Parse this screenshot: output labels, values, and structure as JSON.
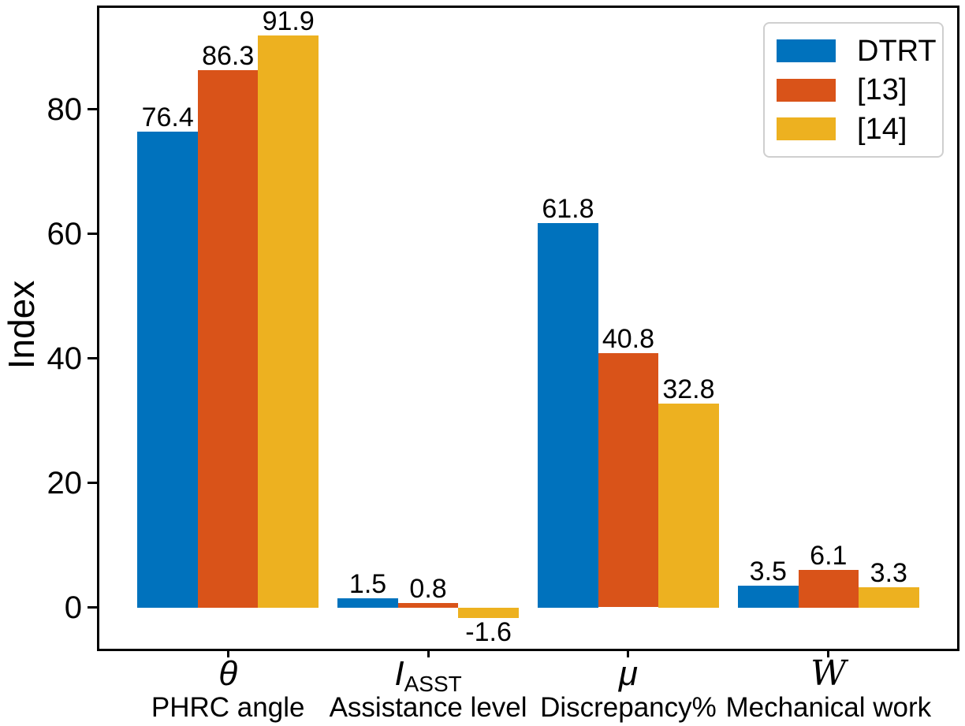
{
  "chart_data": {
    "type": "bar",
    "title": "",
    "xlabel": "",
    "ylabel": "Index",
    "background_color": "#ffffff",
    "axis_color": "#000000",
    "grid": false,
    "legend_position": "upper right",
    "y_ticks": [
      0,
      20,
      40,
      60,
      80
    ],
    "ylim": [
      -6.6,
      96.3
    ],
    "categories": [
      {
        "symbol": "θ",
        "subscript": "",
        "symbol_style": "italic",
        "label": "PHRC angle"
      },
      {
        "symbol": "I",
        "subscript": "ASST",
        "symbol_style": "italic",
        "label": "Assistance level"
      },
      {
        "symbol": "μ",
        "subscript": "",
        "symbol_style": "italic",
        "label": "Discrepancy%"
      },
      {
        "symbol": "W",
        "subscript": "",
        "symbol_style": "script",
        "label": "Mechanical work"
      }
    ],
    "series": [
      {
        "name": "DTRT",
        "color": "#0072BD",
        "values": [
          76.4,
          1.5,
          61.8,
          3.5
        ]
      },
      {
        "name": "[13]",
        "color": "#D95319",
        "values": [
          86.3,
          0.8,
          40.8,
          6.1
        ]
      },
      {
        "name": "[14]",
        "color": "#EDB120",
        "values": [
          91.9,
          -1.6,
          32.8,
          3.3
        ]
      }
    ],
    "bar_value_labels": true
  }
}
